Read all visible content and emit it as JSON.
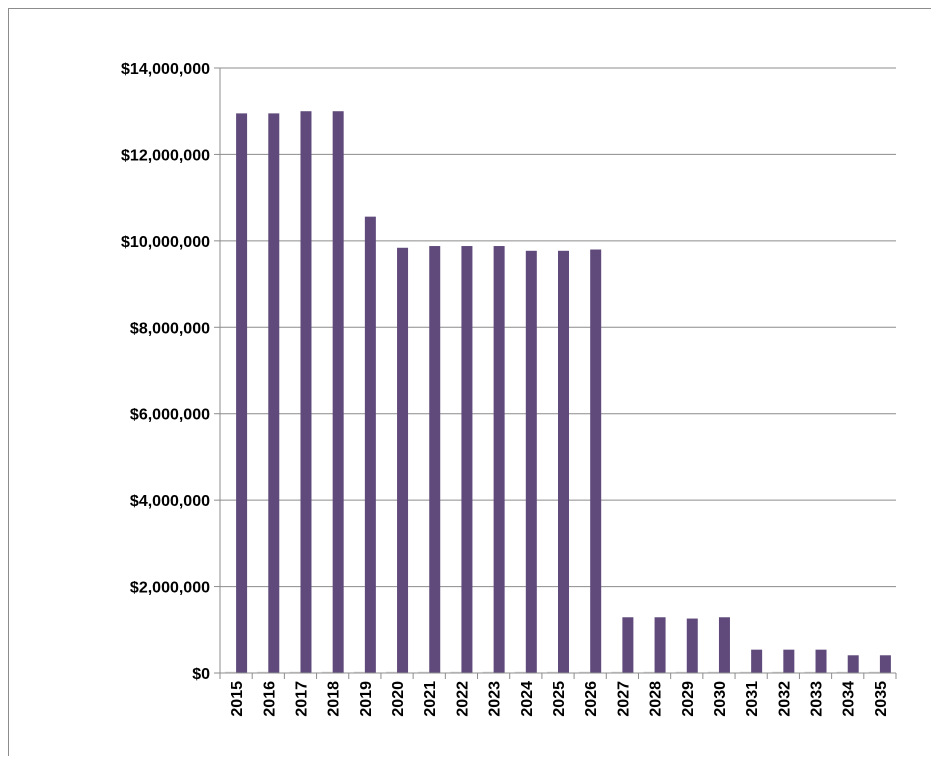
{
  "chart_data": {
    "type": "bar",
    "title": "",
    "xlabel": "",
    "ylabel": "",
    "ylim": [
      0,
      14000000
    ],
    "yticks": [
      0,
      2000000,
      4000000,
      6000000,
      8000000,
      10000000,
      12000000,
      14000000
    ],
    "ytick_labels": [
      "$0",
      "$2,000,000",
      "$4,000,000",
      "$6,000,000",
      "$8,000,000",
      "$10,000,000",
      "$12,000,000",
      "$14,000,000"
    ],
    "categories": [
      "2015",
      "2016",
      "2017",
      "2018",
      "2019",
      "2020",
      "2021",
      "2022",
      "2023",
      "2024",
      "2025",
      "2026",
      "2027",
      "2028",
      "2029",
      "2030",
      "2031",
      "2032",
      "2033",
      "2034",
      "2035"
    ],
    "series": [
      {
        "name": "",
        "color": "#d9d9d9",
        "values": [
          30000,
          30000,
          30000,
          30000,
          30000,
          30000,
          30000,
          30000,
          30000,
          30000,
          30000,
          30000,
          30000,
          30000,
          30000,
          30000,
          30000,
          30000,
          30000,
          30000,
          30000
        ]
      },
      {
        "name": "",
        "color": "#604a7b",
        "values": [
          12950000,
          12950000,
          13000000,
          13000000,
          10560000,
          9840000,
          9880000,
          9880000,
          9880000,
          9770000,
          9770000,
          9800000,
          1290000,
          1290000,
          1260000,
          1290000,
          540000,
          540000,
          540000,
          410000,
          410000
        ]
      }
    ],
    "grid": true,
    "legend": "none",
    "axis_color": "#8c8c8c"
  }
}
